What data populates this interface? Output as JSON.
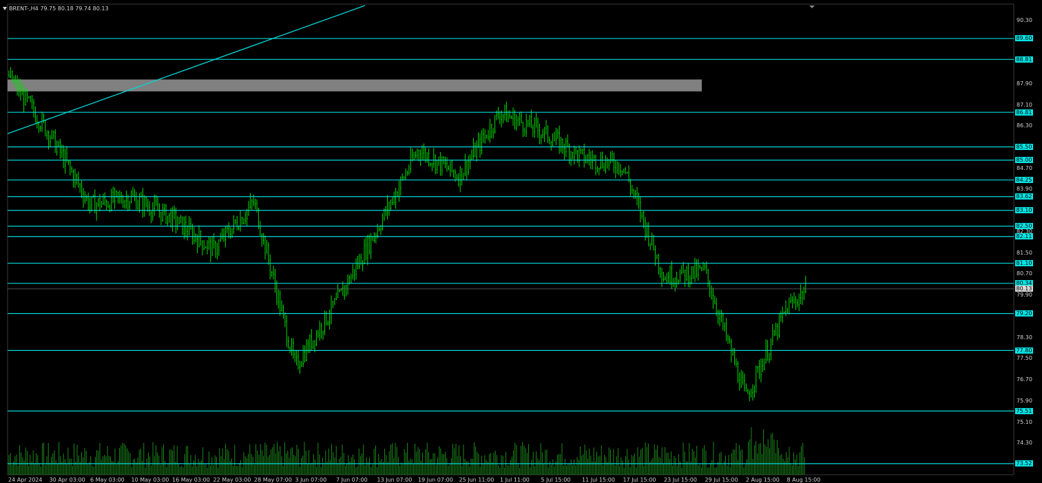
{
  "header": {
    "symbol_line": "BRENT-,H4  79.75 80.18 79.74 80.13"
  },
  "colors": {
    "background": "#000000",
    "level_line": "#00d8d8",
    "candles": "#00e000",
    "volume": "#1f9a1f",
    "zone": "#808080"
  },
  "price_axis": {
    "ticks": [
      "90.30",
      "87.90",
      "87.10",
      "86.30",
      "84.70",
      "83.90",
      "82.30",
      "81.50",
      "80.70",
      "79.90",
      "78.30",
      "77.50",
      "76.70",
      "75.90",
      "75.10",
      "74.30"
    ],
    "current_price_label": "80.13"
  },
  "levels": [
    {
      "label": "89.60",
      "value": 89.6
    },
    {
      "label": "88.81",
      "value": 88.81
    },
    {
      "label": "86.81",
      "value": 86.81
    },
    {
      "label": "85.50",
      "value": 85.5
    },
    {
      "label": "85.00",
      "value": 85.0
    },
    {
      "label": "84.25",
      "value": 84.25
    },
    {
      "label": "83.62",
      "value": 83.62
    },
    {
      "label": "83.10",
      "value": 83.1
    },
    {
      "label": "82.50",
      "value": 82.5
    },
    {
      "label": "82.11",
      "value": 82.11
    },
    {
      "label": "81.10",
      "value": 81.1
    },
    {
      "label": "80.34",
      "value": 80.34
    },
    {
      "label": "79.20",
      "value": 79.2
    },
    {
      "label": "77.80",
      "value": 77.8
    },
    {
      "label": "75.51",
      "value": 75.51
    },
    {
      "label": "73.52",
      "value": 73.52
    }
  ],
  "time_axis": {
    "ticks": [
      "24 Apr 2024",
      "30 Apr 03:00",
      "6 May 03:00",
      "10 May 03:00",
      "16 May 03:00",
      "22 May 03:00",
      "28 May 07:00",
      "3 Jun 07:00",
      "7 Jun 07:00",
      "13 Jun 07:00",
      "19 Jun 07:00",
      "25 Jun 11:00",
      "1 Jul 11:00",
      "5 Jul 15:00",
      "11 Jul 15:00",
      "17 Jul 15:00",
      "23 Jul 15:00",
      "29 Jul 15:00",
      "2 Aug 15:00",
      "8 Aug 15:00"
    ]
  },
  "chart_data": {
    "type": "candlestick",
    "symbol": "BRENT-",
    "timeframe": "H4",
    "last_bar": {
      "open": 79.75,
      "high": 80.18,
      "low": 79.74,
      "close": 80.13
    },
    "ylim": [
      73.1,
      90.9
    ],
    "price_path": [
      {
        "t": "24 Apr 2024",
        "price": 88.2
      },
      {
        "t": "30 Apr 03:00",
        "price": 86.0
      },
      {
        "t": "6 May 03:00",
        "price": 83.3
      },
      {
        "t": "10 May 03:00",
        "price": 83.6
      },
      {
        "t": "16 May 03:00",
        "price": 82.8
      },
      {
        "t": "22 May 03:00",
        "price": 81.6
      },
      {
        "t": "28 May 07:00",
        "price": 83.4
      },
      {
        "t": "3 Jun 07:00",
        "price": 77.2
      },
      {
        "t": "7 Jun 07:00",
        "price": 79.6
      },
      {
        "t": "13 Jun 07:00",
        "price": 82.4
      },
      {
        "t": "19 Jun 07:00",
        "price": 85.4
      },
      {
        "t": "25 Jun 11:00",
        "price": 84.4
      },
      {
        "t": "1 Jul 11:00",
        "price": 86.8
      },
      {
        "t": "5 Jul 15:00",
        "price": 86.1
      },
      {
        "t": "11 Jul 15:00",
        "price": 85.1
      },
      {
        "t": "17 Jul 15:00",
        "price": 84.8
      },
      {
        "t": "23 Jul 15:00",
        "price": 80.6
      },
      {
        "t": "29 Jul 15:00",
        "price": 80.8
      },
      {
        "t": "2 Aug 15:00",
        "price": 76.0
      },
      {
        "t": "8 Aug 15:00",
        "price": 79.4
      }
    ],
    "resistance_zone": {
      "low": 87.6,
      "high": 88.05
    },
    "trendline": {
      "from": {
        "t": "24 Apr 2024",
        "price": 86.0
      },
      "slope_per_tick": 1.35
    }
  }
}
